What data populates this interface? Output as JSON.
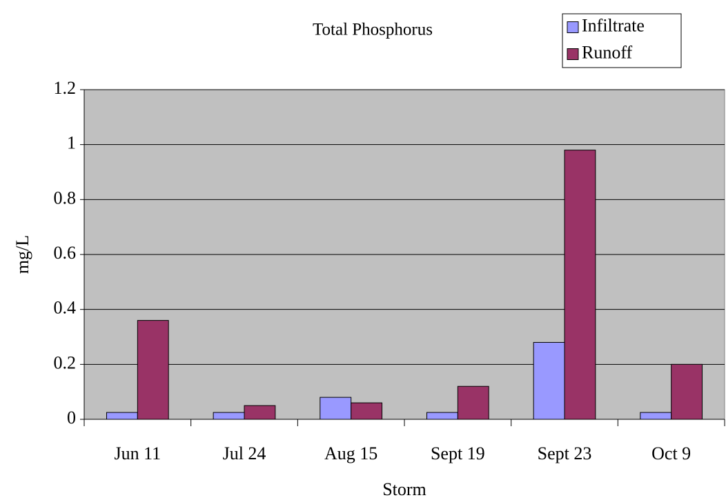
{
  "chart_data": {
    "type": "bar",
    "title": "Total Phosphorus",
    "x_label": "Storm",
    "y_label": "mg/L",
    "categories": [
      "Jun 11",
      "Jul 24",
      "Aug 15",
      "Sept 19",
      "Sept 23",
      "Oct 9"
    ],
    "series": [
      {
        "name": "Infiltrate",
        "color": "#9999ff",
        "values": [
          0.025,
          0.025,
          0.08,
          0.025,
          0.28,
          0.025
        ]
      },
      {
        "name": "Runoff",
        "color": "#993366",
        "values": [
          0.36,
          0.05,
          0.06,
          0.12,
          0.98,
          0.2
        ]
      }
    ],
    "ylim": [
      0,
      1.2
    ],
    "yticks": [
      0,
      0.2,
      0.4,
      0.6,
      0.8,
      1,
      1.2
    ],
    "grid": true,
    "legend": "top-right",
    "plot_background": "#c0c0c0"
  }
}
